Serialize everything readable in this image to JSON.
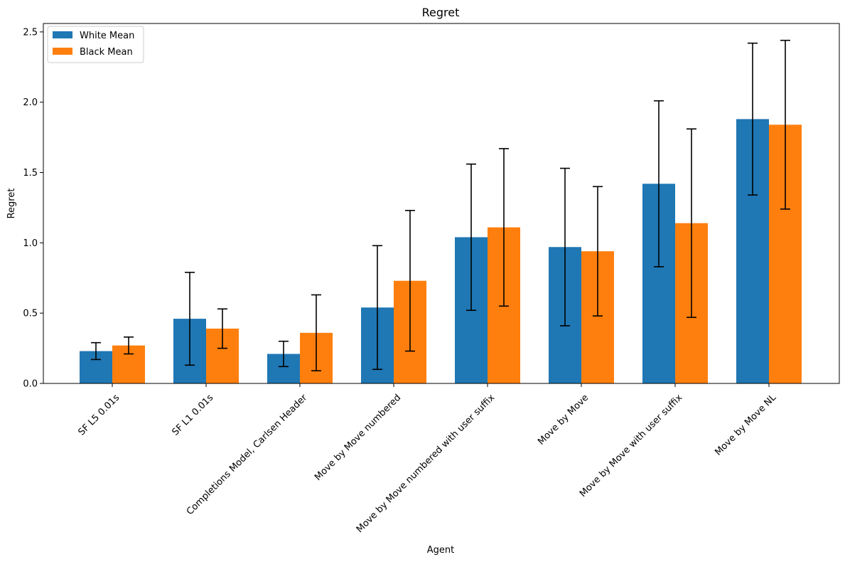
{
  "chart_data": {
    "type": "bar",
    "title": "Regret",
    "xlabel": "Agent",
    "ylabel": "Regret",
    "ylim": [
      0,
      2.56
    ],
    "yticks": [
      "0.0",
      "0.5",
      "1.0",
      "1.5",
      "2.0",
      "2.5"
    ],
    "grid": false,
    "legend": "top-left",
    "categories": [
      "SF L5 0.01s",
      "SF L1 0.01s",
      "Completions Model, Carlsen Header",
      "Move by Move numbered",
      "Move by Move numbered with user suffix",
      "Move by Move",
      "Move by Move with user suffix",
      "Move by Move NL"
    ],
    "series": [
      {
        "name": "White Mean",
        "color": "#1f77b4",
        "values": [
          0.23,
          0.46,
          0.21,
          0.54,
          1.04,
          0.97,
          1.42,
          1.88
        ],
        "error": [
          0.06,
          0.33,
          0.09,
          0.44,
          0.52,
          0.56,
          0.59,
          0.54
        ]
      },
      {
        "name": "Black Mean",
        "color": "#ff7f0e",
        "values": [
          0.27,
          0.39,
          0.36,
          0.73,
          1.11,
          0.94,
          1.14,
          1.84
        ],
        "error": [
          0.06,
          0.14,
          0.27,
          0.5,
          0.56,
          0.46,
          0.67,
          0.6
        ]
      }
    ]
  }
}
